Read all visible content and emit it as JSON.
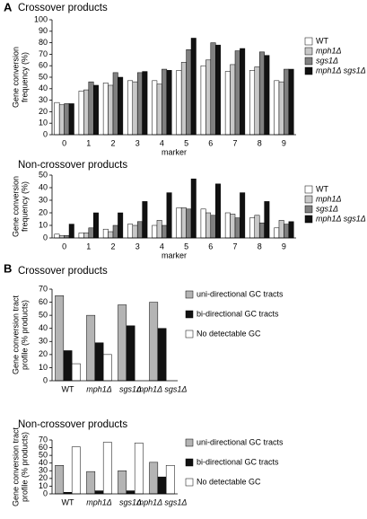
{
  "panel_labels": [
    "A",
    "B"
  ],
  "chart_data": [
    {
      "type": "bar",
      "title": "Crossover products",
      "ylabel": [
        "Gene conversion",
        "frequency (%)"
      ],
      "xlabel": "marker",
      "categories": [
        "0",
        "1",
        "2",
        "3",
        "4",
        "5",
        "6",
        "7",
        "8",
        "9"
      ],
      "ylim": [
        0,
        100
      ],
      "yticks": [
        0,
        10,
        20,
        30,
        40,
        50,
        60,
        70,
        80,
        90,
        100
      ],
      "series": [
        {
          "name": "WT",
          "color": "#ffffff",
          "values": [
            28,
            38,
            45,
            47,
            47,
            56,
            60,
            55,
            56,
            47
          ]
        },
        {
          "name": "mph1Δ",
          "color": "#c8c8c8",
          "values": [
            26,
            39,
            43,
            46,
            44,
            63,
            65,
            61,
            59,
            46
          ]
        },
        {
          "name": "sgs1Δ",
          "color": "#808080",
          "values": [
            27,
            46,
            54,
            54,
            57,
            74,
            80,
            73,
            72,
            57
          ]
        },
        {
          "name": "mph1Δ sgs1Δ",
          "color": "#111111",
          "values": [
            27,
            43,
            50,
            55,
            56,
            84,
            78,
            75,
            69,
            57
          ]
        }
      ]
    },
    {
      "type": "bar",
      "title": "Non-crossover products",
      "ylabel": [
        "Gene conversion",
        "frequency (%)"
      ],
      "xlabel": "marker",
      "categories": [
        "0",
        "1",
        "2",
        "3",
        "4",
        "5",
        "6",
        "7",
        "8",
        "9"
      ],
      "ylim": [
        0,
        50
      ],
      "yticks": [
        0,
        10,
        20,
        30,
        40,
        50
      ],
      "series": [
        {
          "name": "WT",
          "color": "#ffffff",
          "values": [
            3,
            4,
            7,
            11,
            10,
            24,
            23,
            20,
            16,
            8
          ]
        },
        {
          "name": "mph1Δ",
          "color": "#c8c8c8",
          "values": [
            2,
            4,
            5,
            10,
            14,
            24,
            20,
            19,
            18,
            14
          ]
        },
        {
          "name": "sgs1Δ",
          "color": "#808080",
          "values": [
            2,
            8,
            10,
            13,
            10,
            23,
            18,
            16,
            12,
            11
          ]
        },
        {
          "name": "mph1Δ sgs1Δ",
          "color": "#111111",
          "values": [
            11,
            20,
            20,
            29,
            36,
            47,
            43,
            36,
            29,
            13
          ]
        }
      ]
    },
    {
      "type": "bar",
      "title": "Crossover products",
      "ylabel": [
        "Gene conversion tract",
        "profile (% products)"
      ],
      "categories": [
        "WT",
        "mph1Δ",
        "sgs1Δ",
        "mph1Δ sgs1Δ"
      ],
      "ylim": [
        0,
        70
      ],
      "yticks": [
        0,
        10,
        20,
        30,
        40,
        50,
        60,
        70
      ],
      "series": [
        {
          "name": "uni-directional GC tracts",
          "color": "#b4b4b4",
          "values": [
            65,
            50,
            58,
            60
          ]
        },
        {
          "name": "bi-directional GC tracts",
          "color": "#111111",
          "values": [
            23,
            29,
            42,
            40
          ]
        },
        {
          "name": "No detectable GC",
          "color": "#ffffff",
          "values": [
            13,
            20,
            0,
            0
          ]
        }
      ]
    },
    {
      "type": "bar",
      "title": "Non-crossover products",
      "ylabel": [
        "Gene conversion tract",
        "profile (% products)"
      ],
      "categories": [
        "WT",
        "mph1Δ",
        "sgs1Δ",
        "mph1Δ sgs1Δ"
      ],
      "ylim": [
        0,
        70
      ],
      "yticks": [
        0,
        10,
        20,
        30,
        40,
        50,
        60,
        70
      ],
      "series": [
        {
          "name": "uni-directional GC tracts",
          "color": "#b4b4b4",
          "values": [
            37,
            29,
            30,
            41
          ]
        },
        {
          "name": "bi-directional GC tracts",
          "color": "#111111",
          "values": [
            2,
            4,
            4,
            22
          ]
        },
        {
          "name": "No detectable GC",
          "color": "#ffffff",
          "values": [
            61,
            67,
            66,
            37
          ]
        }
      ]
    }
  ]
}
